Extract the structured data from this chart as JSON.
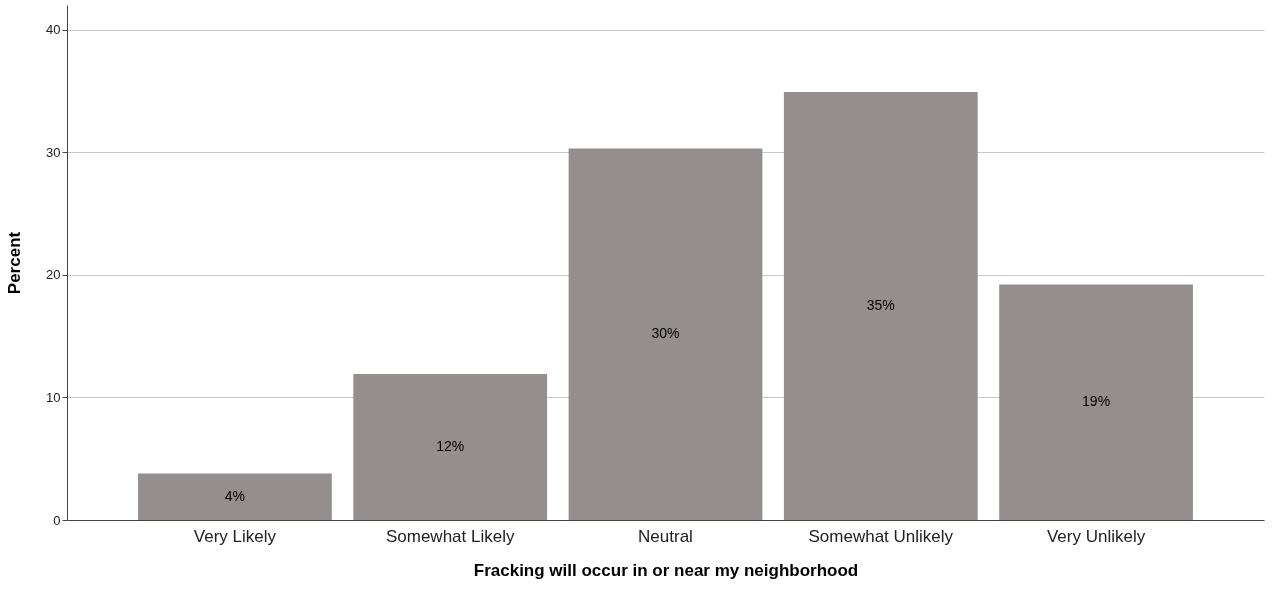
{
  "chart_data": {
    "type": "bar",
    "xlabel": "Fracking will occur in or near my neighborhood",
    "ylabel": "Percent",
    "categories": [
      "Very Likely",
      "Somewhat Likely",
      "Neutral",
      "Somewhat Unlikely",
      "Very Unlikely"
    ],
    "values": [
      3.8,
      11.9,
      30.3,
      34.9,
      19.2
    ],
    "value_labels": [
      "4%",
      "12%",
      "30%",
      "35%",
      "19%"
    ],
    "color": "#948f8e",
    "ylim": [
      0,
      42
    ],
    "yticks": [
      0,
      10,
      20,
      30,
      40
    ],
    "grid": "y"
  }
}
